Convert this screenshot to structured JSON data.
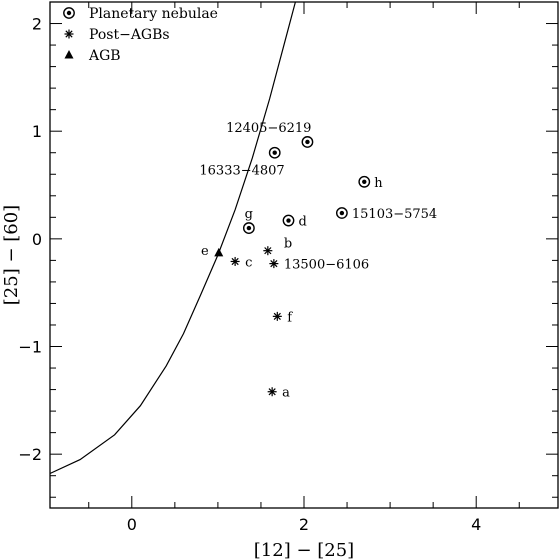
{
  "chart_data": {
    "type": "scatter",
    "title": "",
    "xlabel": "[12] − [25]",
    "ylabel": "[25] − [60]",
    "xlim": [
      -0.95,
      4.95
    ],
    "ylim": [
      -2.5,
      2.2
    ],
    "x_major_ticks": [
      0,
      2,
      4
    ],
    "x_tick_labels": [
      "0",
      "2",
      "4"
    ],
    "y_major_ticks": [
      -2,
      -1,
      0,
      1,
      2
    ],
    "y_tick_labels": [
      "−2",
      "−1",
      "0",
      "1",
      "2"
    ],
    "x_minor_step": 0.5,
    "y_minor_step": 0.2,
    "grid": false,
    "legend_position": "top-left",
    "legend": [
      {
        "name": "Planetary nebulae",
        "marker": "circled-dot"
      },
      {
        "name": "Post−AGBs",
        "marker": "asterisk"
      },
      {
        "name": "AGB",
        "marker": "triangle"
      }
    ],
    "series": [
      {
        "name": "Planetary nebulae",
        "marker": "circled-dot",
        "points": [
          {
            "x": 2.04,
            "y": 0.9,
            "label": "12405−6219",
            "label_pos": "above-left"
          },
          {
            "x": 1.66,
            "y": 0.8,
            "label": "16333−4807",
            "label_pos": "below-left"
          },
          {
            "x": 2.7,
            "y": 0.53,
            "label": "h",
            "label_pos": "right"
          },
          {
            "x": 1.82,
            "y": 0.17,
            "label": "d",
            "label_pos": "right"
          },
          {
            "x": 2.44,
            "y": 0.24,
            "label": "15103−5754",
            "label_pos": "right"
          },
          {
            "x": 1.36,
            "y": 0.1,
            "label": "g",
            "label_pos": "above-left"
          }
        ]
      },
      {
        "name": "Post−AGBs",
        "marker": "asterisk",
        "points": [
          {
            "x": 1.58,
            "y": -0.11,
            "label": "b",
            "label_pos": "above-right"
          },
          {
            "x": 1.2,
            "y": -0.21,
            "label": "c",
            "label_pos": "right"
          },
          {
            "x": 1.65,
            "y": -0.23,
            "label": "13500−6106",
            "label_pos": "right"
          },
          {
            "x": 1.69,
            "y": -0.72,
            "label": "f",
            "label_pos": "right"
          },
          {
            "x": 1.63,
            "y": -1.42,
            "label": "a",
            "label_pos": "right"
          }
        ]
      },
      {
        "name": "AGB",
        "marker": "triangle",
        "points": [
          {
            "x": 1.01,
            "y": -0.13,
            "label": "e",
            "label_pos": "left"
          }
        ]
      }
    ],
    "curve": {
      "description": "boundary curve",
      "points": [
        [
          -0.95,
          -2.18
        ],
        [
          -0.6,
          -2.05
        ],
        [
          -0.2,
          -1.82
        ],
        [
          0.1,
          -1.55
        ],
        [
          0.4,
          -1.18
        ],
        [
          0.6,
          -0.88
        ],
        [
          0.8,
          -0.52
        ],
        [
          1.0,
          -0.15
        ],
        [
          1.2,
          0.27
        ],
        [
          1.4,
          0.75
        ],
        [
          1.6,
          1.3
        ],
        [
          1.8,
          1.9
        ],
        [
          1.9,
          2.2
        ]
      ]
    }
  }
}
